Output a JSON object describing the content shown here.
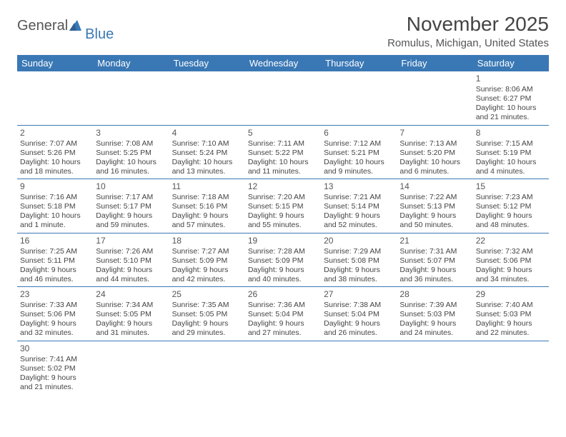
{
  "logo": {
    "text_general": "General",
    "text_blue": "Blue",
    "sail_color": "#3a78b5"
  },
  "title": "November 2025",
  "location": "Romulus, Michigan, United States",
  "colors": {
    "header_bg": "#3a78b5",
    "header_text": "#ffffff",
    "border": "#3a78b5",
    "body_text": "#444444"
  },
  "day_headers": [
    "Sunday",
    "Monday",
    "Tuesday",
    "Wednesday",
    "Thursday",
    "Friday",
    "Saturday"
  ],
  "weeks": [
    [
      null,
      null,
      null,
      null,
      null,
      null,
      {
        "n": "1",
        "sr": "Sunrise: 8:06 AM",
        "ss": "Sunset: 6:27 PM",
        "dl": "Daylight: 10 hours and 21 minutes."
      }
    ],
    [
      {
        "n": "2",
        "sr": "Sunrise: 7:07 AM",
        "ss": "Sunset: 5:26 PM",
        "dl": "Daylight: 10 hours and 18 minutes."
      },
      {
        "n": "3",
        "sr": "Sunrise: 7:08 AM",
        "ss": "Sunset: 5:25 PM",
        "dl": "Daylight: 10 hours and 16 minutes."
      },
      {
        "n": "4",
        "sr": "Sunrise: 7:10 AM",
        "ss": "Sunset: 5:24 PM",
        "dl": "Daylight: 10 hours and 13 minutes."
      },
      {
        "n": "5",
        "sr": "Sunrise: 7:11 AM",
        "ss": "Sunset: 5:22 PM",
        "dl": "Daylight: 10 hours and 11 minutes."
      },
      {
        "n": "6",
        "sr": "Sunrise: 7:12 AM",
        "ss": "Sunset: 5:21 PM",
        "dl": "Daylight: 10 hours and 9 minutes."
      },
      {
        "n": "7",
        "sr": "Sunrise: 7:13 AM",
        "ss": "Sunset: 5:20 PM",
        "dl": "Daylight: 10 hours and 6 minutes."
      },
      {
        "n": "8",
        "sr": "Sunrise: 7:15 AM",
        "ss": "Sunset: 5:19 PM",
        "dl": "Daylight: 10 hours and 4 minutes."
      }
    ],
    [
      {
        "n": "9",
        "sr": "Sunrise: 7:16 AM",
        "ss": "Sunset: 5:18 PM",
        "dl": "Daylight: 10 hours and 1 minute."
      },
      {
        "n": "10",
        "sr": "Sunrise: 7:17 AM",
        "ss": "Sunset: 5:17 PM",
        "dl": "Daylight: 9 hours and 59 minutes."
      },
      {
        "n": "11",
        "sr": "Sunrise: 7:18 AM",
        "ss": "Sunset: 5:16 PM",
        "dl": "Daylight: 9 hours and 57 minutes."
      },
      {
        "n": "12",
        "sr": "Sunrise: 7:20 AM",
        "ss": "Sunset: 5:15 PM",
        "dl": "Daylight: 9 hours and 55 minutes."
      },
      {
        "n": "13",
        "sr": "Sunrise: 7:21 AM",
        "ss": "Sunset: 5:14 PM",
        "dl": "Daylight: 9 hours and 52 minutes."
      },
      {
        "n": "14",
        "sr": "Sunrise: 7:22 AM",
        "ss": "Sunset: 5:13 PM",
        "dl": "Daylight: 9 hours and 50 minutes."
      },
      {
        "n": "15",
        "sr": "Sunrise: 7:23 AM",
        "ss": "Sunset: 5:12 PM",
        "dl": "Daylight: 9 hours and 48 minutes."
      }
    ],
    [
      {
        "n": "16",
        "sr": "Sunrise: 7:25 AM",
        "ss": "Sunset: 5:11 PM",
        "dl": "Daylight: 9 hours and 46 minutes."
      },
      {
        "n": "17",
        "sr": "Sunrise: 7:26 AM",
        "ss": "Sunset: 5:10 PM",
        "dl": "Daylight: 9 hours and 44 minutes."
      },
      {
        "n": "18",
        "sr": "Sunrise: 7:27 AM",
        "ss": "Sunset: 5:09 PM",
        "dl": "Daylight: 9 hours and 42 minutes."
      },
      {
        "n": "19",
        "sr": "Sunrise: 7:28 AM",
        "ss": "Sunset: 5:09 PM",
        "dl": "Daylight: 9 hours and 40 minutes."
      },
      {
        "n": "20",
        "sr": "Sunrise: 7:29 AM",
        "ss": "Sunset: 5:08 PM",
        "dl": "Daylight: 9 hours and 38 minutes."
      },
      {
        "n": "21",
        "sr": "Sunrise: 7:31 AM",
        "ss": "Sunset: 5:07 PM",
        "dl": "Daylight: 9 hours and 36 minutes."
      },
      {
        "n": "22",
        "sr": "Sunrise: 7:32 AM",
        "ss": "Sunset: 5:06 PM",
        "dl": "Daylight: 9 hours and 34 minutes."
      }
    ],
    [
      {
        "n": "23",
        "sr": "Sunrise: 7:33 AM",
        "ss": "Sunset: 5:06 PM",
        "dl": "Daylight: 9 hours and 32 minutes."
      },
      {
        "n": "24",
        "sr": "Sunrise: 7:34 AM",
        "ss": "Sunset: 5:05 PM",
        "dl": "Daylight: 9 hours and 31 minutes."
      },
      {
        "n": "25",
        "sr": "Sunrise: 7:35 AM",
        "ss": "Sunset: 5:05 PM",
        "dl": "Daylight: 9 hours and 29 minutes."
      },
      {
        "n": "26",
        "sr": "Sunrise: 7:36 AM",
        "ss": "Sunset: 5:04 PM",
        "dl": "Daylight: 9 hours and 27 minutes."
      },
      {
        "n": "27",
        "sr": "Sunrise: 7:38 AM",
        "ss": "Sunset: 5:04 PM",
        "dl": "Daylight: 9 hours and 26 minutes."
      },
      {
        "n": "28",
        "sr": "Sunrise: 7:39 AM",
        "ss": "Sunset: 5:03 PM",
        "dl": "Daylight: 9 hours and 24 minutes."
      },
      {
        "n": "29",
        "sr": "Sunrise: 7:40 AM",
        "ss": "Sunset: 5:03 PM",
        "dl": "Daylight: 9 hours and 22 minutes."
      }
    ],
    [
      {
        "n": "30",
        "sr": "Sunrise: 7:41 AM",
        "ss": "Sunset: 5:02 PM",
        "dl": "Daylight: 9 hours and 21 minutes."
      },
      null,
      null,
      null,
      null,
      null,
      null
    ]
  ]
}
